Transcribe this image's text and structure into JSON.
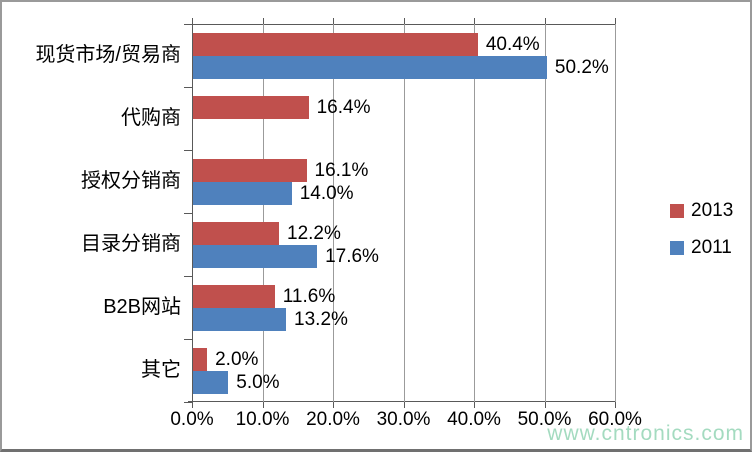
{
  "chart_data": {
    "type": "bar",
    "orientation": "horizontal",
    "title": "",
    "categories": [
      "现货市场/贸易商",
      "代购商",
      "授权分销商",
      "目录分销商",
      "B2B网站",
      "其它"
    ],
    "series": [
      {
        "name": "2013",
        "color": "#C0504D",
        "values": [
          40.4,
          16.4,
          16.1,
          12.2,
          11.6,
          2.0
        ],
        "labels": [
          "40.4%",
          "16.4%",
          "16.1%",
          "12.2%",
          "11.6%",
          "2.0%"
        ]
      },
      {
        "name": "2011",
        "color": "#4F81BD",
        "values": [
          50.2,
          null,
          14.0,
          17.6,
          13.2,
          5.0
        ],
        "labels": [
          "50.2%",
          null,
          "14.0%",
          "17.6%",
          "13.2%",
          "5.0%"
        ]
      }
    ],
    "xlim": [
      0,
      60
    ],
    "x_tick_labels": [
      "0.0%",
      "10.0%",
      "20.0%",
      "30.0%",
      "40.0%",
      "50.0%",
      "60.0%"
    ],
    "grid": "vertical",
    "legend_position": "right",
    "data_labels": true
  },
  "watermark": {
    "text": "www.cntronics.com",
    "color": "#A4DBC0"
  },
  "colors": {
    "axis": "#595959",
    "gridline": "#9B9B9B",
    "background": "#FFFFFF"
  }
}
